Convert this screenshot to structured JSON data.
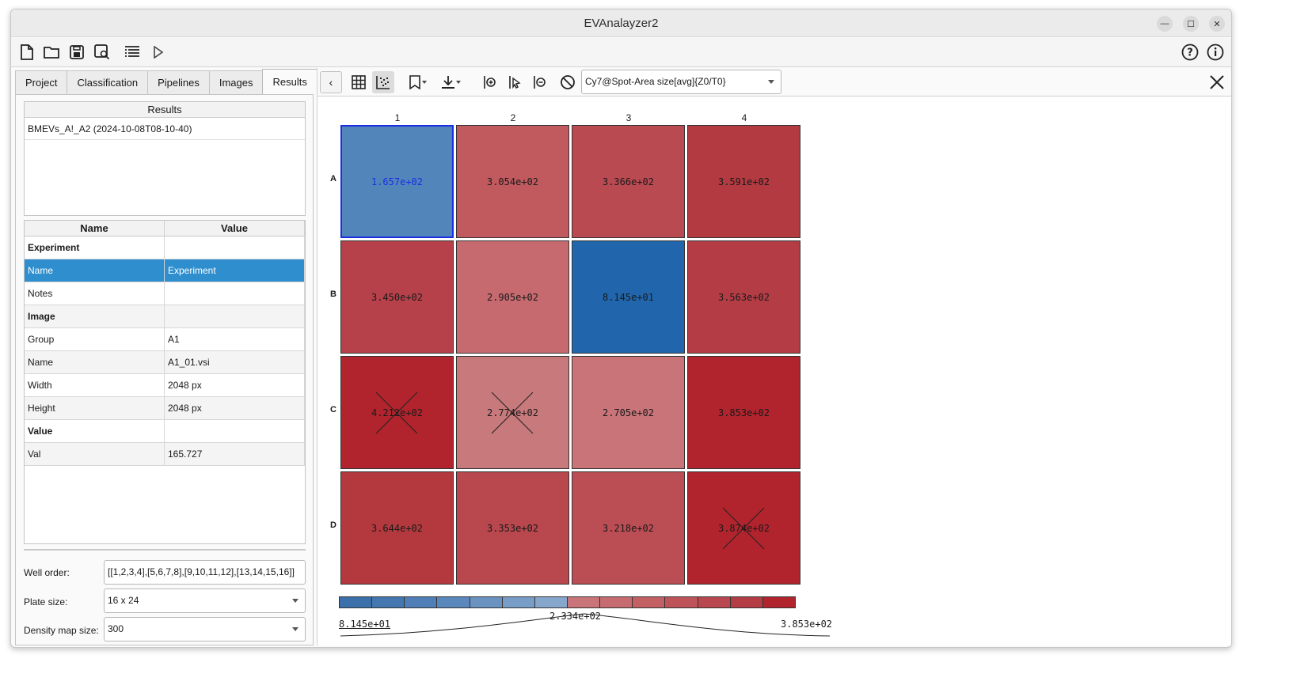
{
  "window": {
    "title": "EVAnalayzer2"
  },
  "left": {
    "tabs": [
      {
        "label": "Project"
      },
      {
        "label": "Classification"
      },
      {
        "label": "Pipelines"
      },
      {
        "label": "Images"
      },
      {
        "label": "Results",
        "active": true
      }
    ],
    "results": {
      "header": "Results",
      "items": [
        "BMEVs_A!_A2 (2024-10-08T08-10-40)"
      ]
    },
    "properties": {
      "headers": {
        "name": "Name",
        "value": "Value"
      },
      "rows": [
        {
          "name": "Experiment",
          "value": ""
        },
        {
          "name": "Name",
          "value": "Experiment"
        },
        {
          "name": "Notes",
          "value": ""
        },
        {
          "name": "Image",
          "value": ""
        },
        {
          "name": "Group",
          "value": "A1"
        },
        {
          "name": "Name",
          "value": "A1_01.vsi"
        },
        {
          "name": "Width",
          "value": "2048 px"
        },
        {
          "name": "Height",
          "value": "2048 px"
        },
        {
          "name": "Value",
          "value": ""
        },
        {
          "name": "Val",
          "value": "165.727"
        }
      ]
    },
    "settings": {
      "well_order_label": "Well order:",
      "well_order_value": "[[1,2,3,4],[5,6,7,8],[9,10,11,12],[13,14,15,16]]",
      "plate_size_label": "Plate size:",
      "plate_size_value": "16 x 24",
      "density_label": "Density map size:",
      "density_value": "300"
    }
  },
  "right": {
    "column_selector": "Cy7@Spot-Area size[avg]{Z0/T0}",
    "plate": {
      "columns": [
        "1",
        "2",
        "3",
        "4"
      ],
      "rows": [
        "A",
        "B",
        "C",
        "D"
      ],
      "wells": [
        [
          "1.657e+02",
          "3.054e+02",
          "3.366e+02",
          "3.591e+02"
        ],
        [
          "3.450e+02",
          "2.905e+02",
          "8.145e+01",
          "3.563e+02"
        ],
        [
          "4.212e+02",
          "2.774e+02",
          "2.705e+02",
          "3.853e+02"
        ],
        [
          "3.644e+02",
          "3.353e+02",
          "3.218e+02",
          "3.874e+02"
        ]
      ],
      "well_colors": [
        [
          "#5286bb",
          "#c15a5f",
          "#ba4a51",
          "#b33a41"
        ],
        [
          "#b6414a",
          "#c66a6f",
          "#2166ac",
          "#b43d45"
        ],
        [
          "#b2242d",
          "#c8797c",
          "#c87478",
          "#b2242d"
        ],
        [
          "#b3393f",
          "#b8474e",
          "#bb4e54",
          "#b2242d"
        ]
      ],
      "selected_well": "A1",
      "excluded_wells": [
        "C1",
        "C2",
        "D4"
      ]
    },
    "color_scale": {
      "min": "8.145e+01",
      "mid": "2.334e+02",
      "max": "3.853e+02",
      "colors": [
        "#3b70aa",
        "#4476b0",
        "#4f7fb6",
        "#5a88bc",
        "#6a93c2",
        "#789dc7",
        "#86a6cb",
        "#c87478",
        "#c66c70",
        "#c26064",
        "#be5359",
        "#b9474f",
        "#b43c44",
        "#b2242d"
      ]
    }
  }
}
